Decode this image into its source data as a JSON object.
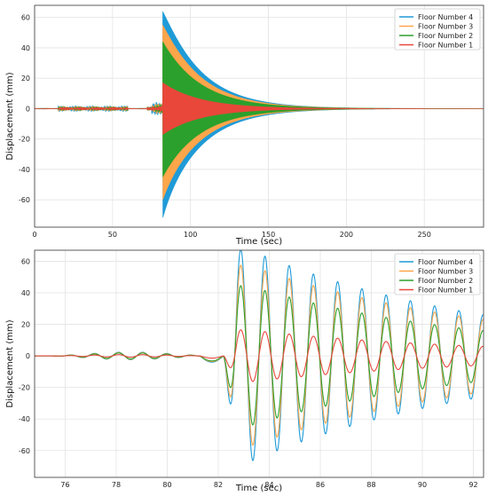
{
  "chart_data": [
    {
      "type": "line",
      "title": "",
      "xlabel": "Time (sec)",
      "ylabel": "Displacement (mm)",
      "xlim": [
        0,
        288
      ],
      "ylim": [
        -78,
        68
      ],
      "xticks": [
        0,
        50,
        100,
        150,
        200,
        250
      ],
      "yticks": [
        -60,
        -40,
        -20,
        0,
        20,
        40,
        60
      ],
      "grid": true,
      "legend_position": "top-right",
      "series": [
        {
          "name": "Floor Number 4",
          "color": "#1f9bd7",
          "peak_amplitude": 64,
          "min_value": -72
        },
        {
          "name": "Floor Number 3",
          "color": "#ffa54a",
          "peak_amplitude": 55,
          "min_value": -60
        },
        {
          "name": "Floor Number 2",
          "color": "#2ca02c",
          "peak_amplitude": 44,
          "min_value": -45
        },
        {
          "name": "Floor Number 1",
          "color": "#e8473a",
          "peak_amplitude": 17,
          "min_value": -17
        }
      ],
      "pre_event_amplitude_approx": 2,
      "event_start_time": 82.2,
      "decay_end_time_approx": 200
    },
    {
      "type": "line",
      "title": "",
      "xlabel": "Time (sec)",
      "ylabel": "Displacement (mm)",
      "xlim": [
        74.8,
        92.4
      ],
      "ylim": [
        -77,
        67
      ],
      "xticks": [
        76,
        78,
        80,
        82,
        84,
        86,
        88,
        90,
        92
      ],
      "yticks": [
        -60,
        -40,
        -20,
        0,
        20,
        40,
        60
      ],
      "grid": true,
      "legend_position": "top-right",
      "series": [
        {
          "name": "Floor Number 4",
          "color": "#1f9bd7",
          "peak_value": 63,
          "min_value": -72
        },
        {
          "name": "Floor Number 3",
          "color": "#ffa54a",
          "peak_value": 55,
          "min_value": -60
        },
        {
          "name": "Floor Number 2",
          "color": "#2ca02c",
          "peak_value": 45,
          "min_value": -44
        },
        {
          "name": "Floor Number 1",
          "color": "#e8473a",
          "peak_value": 15,
          "min_value": -18
        }
      ],
      "oscillation_period_sec": 0.95,
      "event_start_time": 82.2,
      "end_amplitudes": {
        "Floor Number 4": 26,
        "Floor Number 3": 23,
        "Floor Number 2": 16,
        "Floor Number 1": 6
      }
    }
  ]
}
